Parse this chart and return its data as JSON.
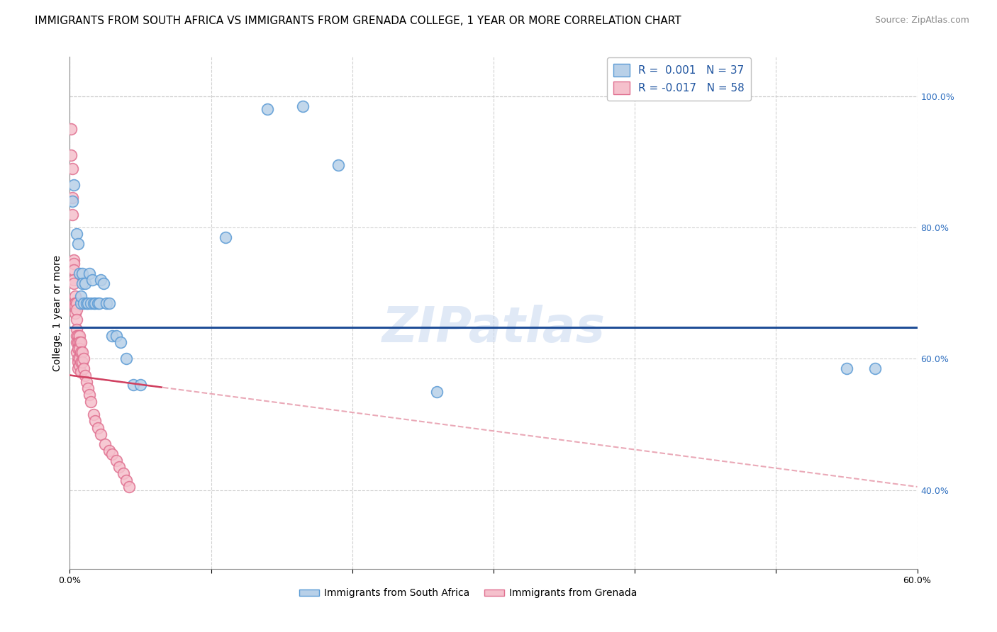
{
  "title": "IMMIGRANTS FROM SOUTH AFRICA VS IMMIGRANTS FROM GRENADA COLLEGE, 1 YEAR OR MORE CORRELATION CHART",
  "source": "Source: ZipAtlas.com",
  "ylabel": "College, 1 year or more",
  "xmin": 0.0,
  "xmax": 0.6,
  "ymin": 0.28,
  "ymax": 1.06,
  "r_blue": 0.001,
  "n_blue": 37,
  "r_pink": -0.017,
  "n_pink": 58,
  "blue_trend_y": 0.648,
  "pink_trend_y_start": 0.575,
  "pink_trend_y_end": 0.405,
  "blue_scatter_x": [
    0.002,
    0.003,
    0.005,
    0.006,
    0.007,
    0.008,
    0.008,
    0.009,
    0.009,
    0.01,
    0.011,
    0.012,
    0.013,
    0.014,
    0.015,
    0.016,
    0.017,
    0.018,
    0.02,
    0.021,
    0.022,
    0.024,
    0.026,
    0.028,
    0.03,
    0.033,
    0.036,
    0.04,
    0.045,
    0.05,
    0.11,
    0.14,
    0.165,
    0.19,
    0.26,
    0.55,
    0.57
  ],
  "blue_scatter_y": [
    0.84,
    0.865,
    0.79,
    0.775,
    0.73,
    0.685,
    0.695,
    0.73,
    0.715,
    0.685,
    0.715,
    0.685,
    0.685,
    0.73,
    0.685,
    0.72,
    0.685,
    0.685,
    0.685,
    0.685,
    0.72,
    0.715,
    0.685,
    0.685,
    0.635,
    0.635,
    0.625,
    0.6,
    0.56,
    0.56,
    0.785,
    0.98,
    0.985,
    0.895,
    0.55,
    0.585,
    0.585
  ],
  "pink_scatter_x": [
    0.001,
    0.001,
    0.002,
    0.002,
    0.002,
    0.003,
    0.003,
    0.003,
    0.003,
    0.003,
    0.004,
    0.004,
    0.004,
    0.004,
    0.004,
    0.005,
    0.005,
    0.005,
    0.005,
    0.005,
    0.005,
    0.005,
    0.006,
    0.006,
    0.006,
    0.006,
    0.006,
    0.006,
    0.007,
    0.007,
    0.007,
    0.007,
    0.007,
    0.008,
    0.008,
    0.008,
    0.008,
    0.009,
    0.009,
    0.01,
    0.01,
    0.011,
    0.012,
    0.013,
    0.014,
    0.015,
    0.017,
    0.018,
    0.02,
    0.022,
    0.025,
    0.028,
    0.03,
    0.033,
    0.035,
    0.038,
    0.04,
    0.042
  ],
  "pink_scatter_y": [
    0.95,
    0.91,
    0.89,
    0.845,
    0.82,
    0.75,
    0.745,
    0.735,
    0.72,
    0.715,
    0.695,
    0.685,
    0.685,
    0.68,
    0.67,
    0.685,
    0.675,
    0.66,
    0.645,
    0.635,
    0.625,
    0.61,
    0.635,
    0.625,
    0.615,
    0.6,
    0.595,
    0.585,
    0.635,
    0.625,
    0.615,
    0.6,
    0.59,
    0.625,
    0.61,
    0.595,
    0.58,
    0.61,
    0.595,
    0.6,
    0.585,
    0.575,
    0.565,
    0.555,
    0.545,
    0.535,
    0.515,
    0.505,
    0.495,
    0.485,
    0.47,
    0.46,
    0.455,
    0.445,
    0.435,
    0.425,
    0.415,
    0.405
  ],
  "blue_color": "#b8d0e8",
  "blue_edge_color": "#5b9bd5",
  "pink_color": "#f5c0cc",
  "pink_edge_color": "#e07090",
  "blue_line_color": "#1f4e97",
  "pink_line_color": "#d04060",
  "pink_dashed_color": "#e8a0b0",
  "background_color": "#ffffff",
  "grid_color": "#cccccc",
  "title_fontsize": 11,
  "source_fontsize": 9,
  "label_fontsize": 10,
  "tick_fontsize": 9,
  "legend_fontsize": 10,
  "watermark_text": "ZIPatlas",
  "watermark_color": "#c8d8f0",
  "watermark_fontsize": 50
}
